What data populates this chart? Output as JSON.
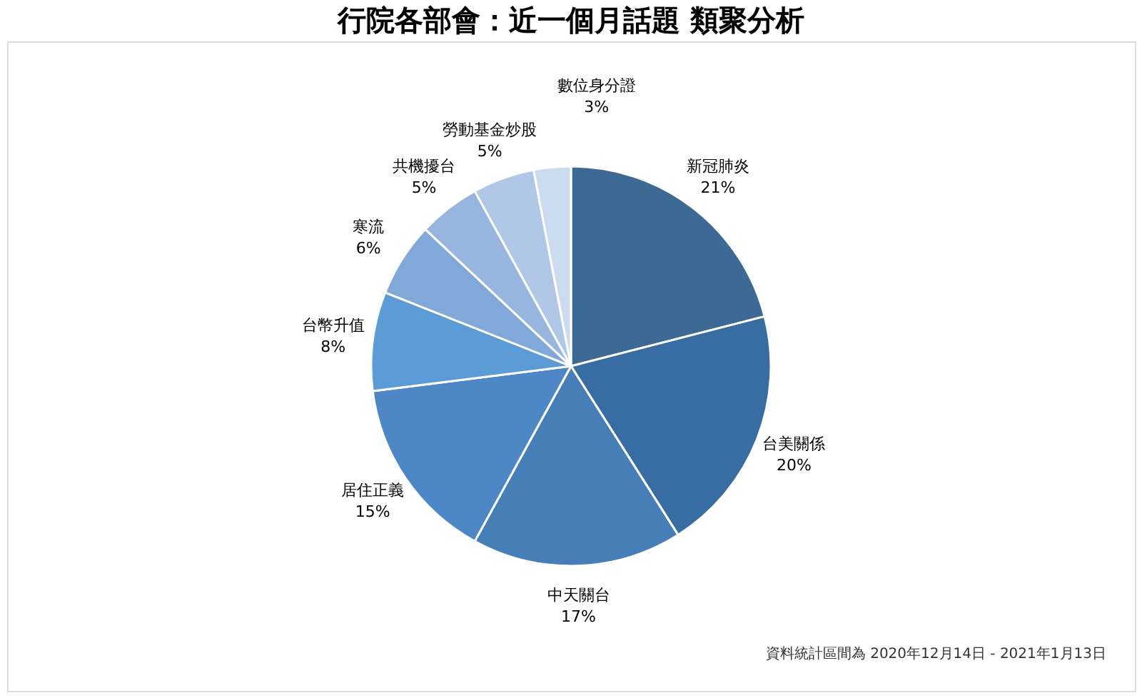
{
  "chart_data": {
    "type": "pie",
    "title": "行院各部會：近一個月話題 類聚分析",
    "categories": [
      "新冠肺炎",
      "台美關係",
      "中天關台",
      "居住正義",
      "台幣升值",
      "寒流",
      "共機擾台",
      "勞動基金炒股",
      "數位身分證"
    ],
    "values": [
      21,
      20,
      17,
      15,
      8,
      6,
      5,
      5,
      3
    ],
    "value_labels": [
      "21%",
      "20%",
      "17%",
      "15%",
      "8%",
      "6%",
      "5%",
      "5%",
      "3%"
    ],
    "colors": [
      "#3d6a94",
      "#386da3",
      "#467fb8",
      "#4d87c5",
      "#5b9bd6",
      "#80a8d9",
      "#96b6e0",
      "#b0c7e8",
      "#ccdaf0"
    ],
    "legend": false,
    "annotations": [
      "資料統計區間為 2020年12月14日 - 2021年1月13日"
    ]
  }
}
